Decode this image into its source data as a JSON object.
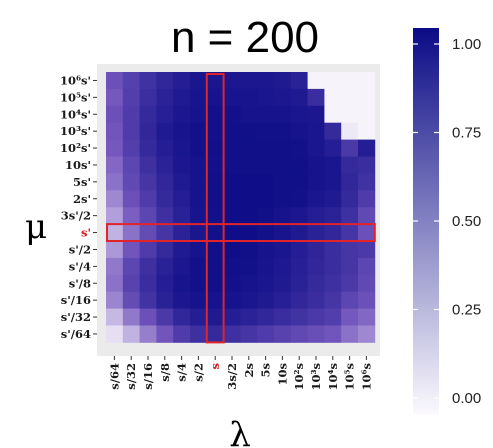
{
  "chart_data": {
    "type": "heatmap",
    "title": "n = 200",
    "xlabel": "λ",
    "ylabel": "μ",
    "x_ticks": [
      "s/64",
      "s/32",
      "s/16",
      "s/8",
      "s/4",
      "s/2",
      "s",
      "3s/2",
      "2s",
      "5s",
      "10s",
      "10²s",
      "10³s",
      "10⁴s",
      "10⁵s",
      "10⁶s"
    ],
    "y_ticks": [
      "10⁶s'",
      "10⁵s'",
      "10⁴s'",
      "10³s'",
      "10²s'",
      "10s'",
      "5s'",
      "2s'",
      "3s'/2",
      "s'",
      "s'/2",
      "s'/4",
      "s'/8",
      "s'/16",
      "s'/32",
      "s'/64"
    ],
    "highlight_x_tick": "s",
    "highlight_y_tick": "s'",
    "colorbar": {
      "min": 0.0,
      "max": 1.0,
      "ticks": [
        "1.00",
        "0.75",
        "0.50",
        "0.25",
        "0.00"
      ],
      "low_color": "#fbf9fd",
      "high_color": "#0b0b86"
    },
    "highlight_color": "#e0242a",
    "values": [
      [
        0.55,
        0.65,
        0.75,
        0.82,
        0.88,
        0.93,
        0.93,
        0.92,
        0.92,
        0.92,
        0.9,
        0.86,
        0.02,
        0.02,
        0.02,
        0.02
      ],
      [
        0.5,
        0.66,
        0.77,
        0.85,
        0.9,
        0.94,
        0.95,
        0.94,
        0.94,
        0.93,
        0.92,
        0.9,
        0.78,
        0.02,
        0.02,
        0.02
      ],
      [
        0.55,
        0.68,
        0.8,
        0.87,
        0.92,
        0.95,
        0.96,
        0.96,
        0.95,
        0.95,
        0.95,
        0.93,
        0.92,
        0.02,
        0.02,
        0.02
      ],
      [
        0.52,
        0.68,
        0.82,
        0.9,
        0.94,
        0.96,
        0.96,
        0.97,
        0.97,
        0.96,
        0.96,
        0.95,
        0.93,
        0.8,
        0.05,
        0.02
      ],
      [
        0.5,
        0.66,
        0.8,
        0.88,
        0.93,
        0.96,
        0.97,
        0.97,
        0.97,
        0.97,
        0.97,
        0.96,
        0.93,
        0.88,
        0.7,
        0.88
      ],
      [
        0.45,
        0.62,
        0.76,
        0.85,
        0.92,
        0.95,
        0.96,
        0.97,
        0.97,
        0.97,
        0.97,
        0.97,
        0.95,
        0.93,
        0.8,
        0.78
      ],
      [
        0.42,
        0.6,
        0.72,
        0.82,
        0.9,
        0.95,
        0.97,
        0.98,
        0.98,
        0.98,
        0.97,
        0.97,
        0.95,
        0.93,
        0.82,
        0.75
      ],
      [
        0.35,
        0.55,
        0.68,
        0.8,
        0.88,
        0.95,
        0.97,
        0.98,
        0.98,
        0.98,
        0.97,
        0.96,
        0.93,
        0.9,
        0.8,
        0.68
      ],
      [
        0.28,
        0.48,
        0.62,
        0.76,
        0.86,
        0.94,
        0.96,
        0.98,
        0.98,
        0.97,
        0.95,
        0.92,
        0.88,
        0.85,
        0.76,
        0.6
      ],
      [
        0.22,
        0.42,
        0.58,
        0.72,
        0.85,
        0.93,
        0.96,
        0.98,
        0.98,
        0.96,
        0.94,
        0.9,
        0.86,
        0.82,
        0.72,
        0.55
      ],
      [
        0.3,
        0.52,
        0.68,
        0.8,
        0.9,
        0.95,
        0.97,
        0.98,
        0.97,
        0.95,
        0.93,
        0.88,
        0.83,
        0.78,
        0.72,
        0.7
      ],
      [
        0.4,
        0.62,
        0.76,
        0.86,
        0.92,
        0.96,
        0.97,
        0.97,
        0.96,
        0.94,
        0.91,
        0.87,
        0.82,
        0.78,
        0.72,
        0.62
      ],
      [
        0.42,
        0.64,
        0.78,
        0.88,
        0.94,
        0.96,
        0.97,
        0.96,
        0.95,
        0.93,
        0.9,
        0.86,
        0.8,
        0.76,
        0.7,
        0.6
      ],
      [
        0.36,
        0.58,
        0.74,
        0.86,
        0.92,
        0.95,
        0.95,
        0.95,
        0.93,
        0.9,
        0.87,
        0.82,
        0.78,
        0.72,
        0.62,
        0.55
      ],
      [
        0.2,
        0.4,
        0.55,
        0.7,
        0.82,
        0.88,
        0.9,
        0.88,
        0.85,
        0.82,
        0.78,
        0.74,
        0.7,
        0.66,
        0.5,
        0.45
      ],
      [
        0.08,
        0.22,
        0.38,
        0.52,
        0.68,
        0.76,
        0.8,
        0.76,
        0.72,
        0.68,
        0.64,
        0.6,
        0.56,
        0.52,
        0.42,
        0.35
      ]
    ]
  }
}
